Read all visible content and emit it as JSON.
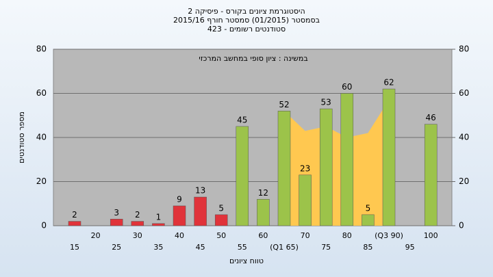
{
  "chart_data": {
    "type": "bar",
    "title": "היסטוגרמת ציונים בקורס - פיסיקה 2",
    "subtitle": "בסמסטר (01/2015) סמסטר חורף 2015/16",
    "subtitle2": "סטודנטים רשומים - 423",
    "annotation": "במשינה : ציון סופי במחשב המרכזי",
    "y_label": "מספר סטודנטים",
    "x_label": "טווח ציונים",
    "categories": [
      "15",
      "20",
      "25",
      "30",
      "35",
      "40",
      "45",
      "50",
      "55",
      "60",
      "(Q1 65)",
      "70",
      "75",
      "80",
      "85",
      "(Q3 90)",
      "95",
      "100"
    ],
    "values": [
      2,
      null,
      3,
      2,
      1,
      9,
      13,
      5,
      45,
      12,
      52,
      23,
      53,
      60,
      5,
      62,
      null,
      46
    ],
    "colors": [
      "#e0333a",
      "#e0333a",
      "#e0333a",
      "#e0333a",
      "#e0333a",
      "#e0333a",
      "#e0333a",
      "#e0333a",
      "#9cc34a",
      "#9cc34a",
      "#9cc34a",
      "#9cc34a",
      "#9cc34a",
      "#9cc34a",
      "#9cc34a",
      "#9cc34a",
      "#9cc34a",
      "#9cc34a"
    ],
    "area": {
      "color": "#ffc850",
      "values": [
        null,
        null,
        null,
        null,
        null,
        null,
        null,
        null,
        null,
        null,
        52,
        43,
        45,
        40,
        42,
        57,
        null,
        null
      ]
    },
    "ylim": [
      0,
      80
    ],
    "yticks": [
      0,
      20,
      40,
      60,
      80
    ],
    "y2lim": [
      0,
      80
    ],
    "y2ticks": [
      0,
      20,
      40,
      60,
      80
    ],
    "grid": true
  }
}
